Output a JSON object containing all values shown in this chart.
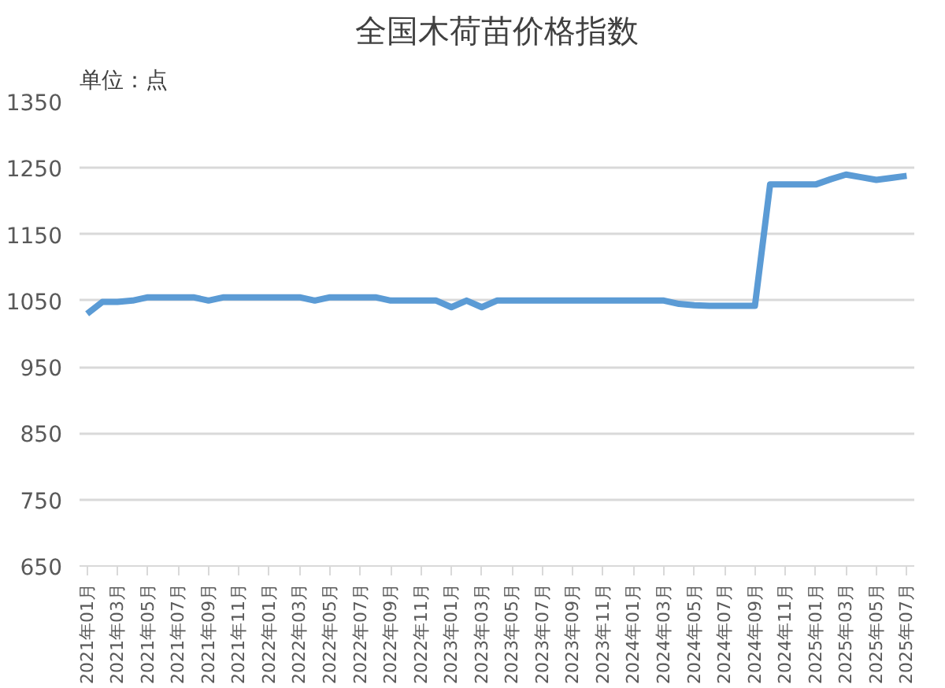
{
  "chart_data": {
    "type": "line",
    "title": "全国木荷苗价格指数",
    "annotations": [
      "单位：点"
    ],
    "categories": [
      "2021年01月",
      null,
      "2021年03月",
      null,
      "2021年05月",
      null,
      "2021年07月",
      null,
      "2021年09月",
      null,
      "2021年11月",
      null,
      "2022年01月",
      null,
      "2022年03月",
      null,
      "2022年05月",
      null,
      "2022年07月",
      null,
      "2022年09月",
      null,
      "2022年11月",
      null,
      "2023年01月",
      null,
      "2023年03月",
      null,
      "2023年05月",
      null,
      "2023年07月",
      null,
      "2023年09月",
      null,
      "2023年11月",
      null,
      "2024年01月",
      null,
      "2024年03月",
      null,
      "2024年05月",
      null,
      "2024年07月",
      null,
      "2024年09月",
      null,
      "2024年11月",
      null,
      "2025年01月",
      null,
      "2025年03月",
      null,
      "2025年05月",
      null,
      "2025年07月"
    ],
    "series": [
      {
        "color": "#5b9bd5",
        "values": [
          1030,
          1048,
          1048,
          1050,
          1055,
          1055,
          1055,
          1055,
          1050,
          1055,
          1055,
          1055,
          1055,
          1055,
          1055,
          1050,
          1055,
          1055,
          1055,
          1055,
          1050,
          1050,
          1050,
          1050,
          1040,
          1050,
          1040,
          1050,
          1050,
          1050,
          1050,
          1050,
          1050,
          1050,
          1050,
          1050,
          1050,
          1050,
          1050,
          1045,
          1043,
          1042,
          1042,
          1042,
          1042,
          1225,
          1225,
          1225,
          1225,
          1233,
          1240,
          1236,
          1232,
          1235,
          1238
        ]
      }
    ],
    "ylim": [
      650,
      1350
    ],
    "yticks": [
      650,
      750,
      850,
      950,
      1050,
      1150,
      1250,
      1350
    ],
    "grid": "y",
    "marker": "none",
    "line_style": "solid"
  }
}
